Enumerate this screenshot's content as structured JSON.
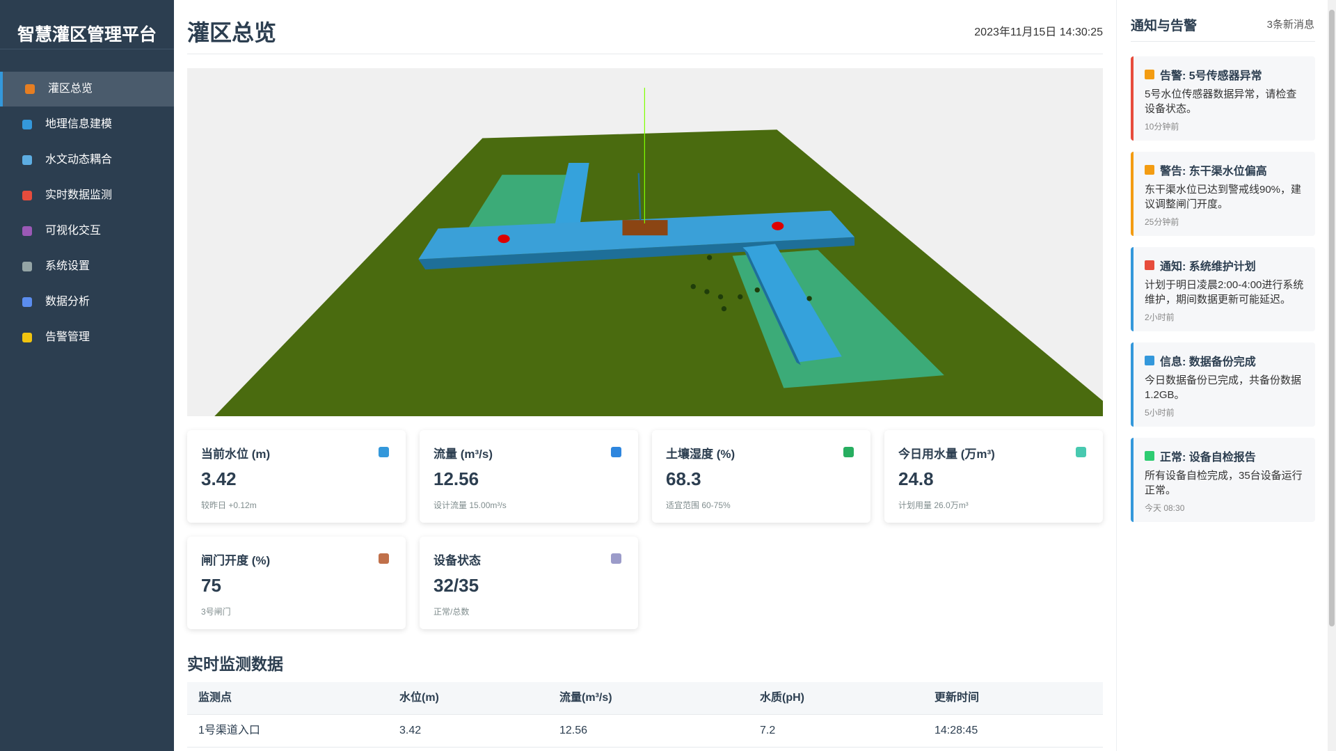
{
  "sidebar": {
    "title": "智慧灌区管理平台",
    "menu": [
      "灌区总览",
      "地理信息建模",
      "水文动态耦合",
      "实时数据监测",
      "可视化交互",
      "系统设置",
      "数据分析",
      "告警管理"
    ]
  },
  "header": {
    "title": "灌区总览",
    "datetime": "2023年11月15日 14:30:25"
  },
  "stats": [
    {
      "label": "当前水位 (m)",
      "value": 3.42,
      "note": "较昨日 +0.12m"
    },
    {
      "label": "流量 (m³/s)",
      "value": 12.56,
      "note": "设计流量 15.00m³/s"
    },
    {
      "label": "土壤湿度 (%)",
      "value": 68.3,
      "note": "适宜范围 60-75%"
    },
    {
      "label": "今日用水量 (万m³)",
      "value": 24.8,
      "note": "计划用量 26.0万m³"
    },
    {
      "label": "闸门开度 (%)",
      "value": 75,
      "note": "3号闸门"
    },
    {
      "label": "设备状态",
      "value": "32/35",
      "note": "正常/总数"
    }
  ],
  "table": {
    "title": "实时监测数据",
    "columns": [
      "监测点",
      "水位(m)",
      "流量(m³/s)",
      "水质(pH)",
      "更新时间"
    ],
    "rows": [
      [
        "1号渠道入口",
        3.42,
        12.56,
        7.2,
        "14:28:45"
      ]
    ]
  },
  "notifications": {
    "title": "通知与告警",
    "count": "3条新消息",
    "items": [
      {
        "title": "告警: 5号传感器异常",
        "body": "5号水位传感器数据异常，请检查设备状态。",
        "time": "10分钟前"
      },
      {
        "title": "警告: 东干渠水位偏高",
        "body": "东干渠水位已达到警戒线90%，建议调整闸门开度。",
        "time": "25分钟前"
      },
      {
        "title": "通知: 系统维护计划",
        "body": "计划于明日凌晨2:00-4:00进行系统维护，期间数据更新可能延迟。",
        "time": "2小时前"
      },
      {
        "title": "信息: 数据备份完成",
        "body": "今日数据备份已完成，共备份数据1.2GB。",
        "time": "5小时前"
      },
      {
        "title": "正常: 设备自检报告",
        "body": "所有设备自检完成，35台设备运行正常。",
        "time": "今天 08:30"
      }
    ]
  }
}
